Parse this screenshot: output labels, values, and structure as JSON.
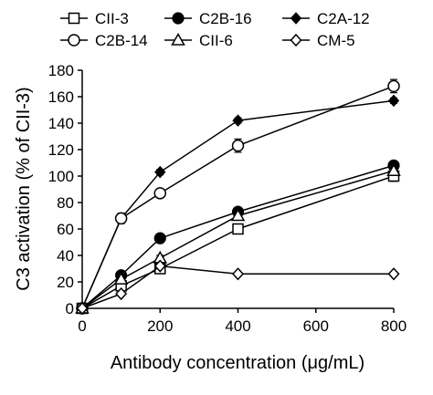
{
  "chart_data": {
    "type": "line",
    "title": "",
    "xlabel": "Antibody concentration (μg/mL)",
    "ylabel": "C3 activation (% of CII-3)",
    "xlim": [
      0,
      800
    ],
    "ylim": [
      0,
      180
    ],
    "xticks": [
      0,
      200,
      400,
      600,
      800
    ],
    "yticks": [
      0,
      20,
      40,
      60,
      80,
      100,
      120,
      140,
      160,
      180
    ],
    "grid": false,
    "legend_position": "top",
    "x": [
      0,
      100,
      200,
      400,
      800
    ],
    "series": [
      {
        "name": "CII-3",
        "marker": "open-square",
        "values": [
          0,
          17,
          30,
          60,
          100
        ],
        "errors": [
          0,
          2,
          2,
          2,
          4
        ]
      },
      {
        "name": "C2B-16",
        "marker": "filled-circle",
        "values": [
          0,
          25,
          53,
          73,
          108
        ],
        "errors": [
          0,
          2,
          2,
          2,
          2
        ]
      },
      {
        "name": "C2A-12",
        "marker": "filled-diamond",
        "values": [
          0,
          68,
          103,
          142,
          157
        ],
        "errors": [
          0,
          3,
          2,
          2,
          2
        ]
      },
      {
        "name": "C2B-14",
        "marker": "open-circle",
        "values": [
          0,
          68,
          87,
          123,
          168
        ],
        "errors": [
          0,
          4,
          2,
          5,
          5
        ]
      },
      {
        "name": "CII-6",
        "marker": "open-triangle",
        "values": [
          0,
          22,
          38,
          70,
          104
        ],
        "errors": [
          0,
          2,
          2,
          2,
          2
        ]
      },
      {
        "name": "CM-5",
        "marker": "open-diamond",
        "values": [
          0,
          11,
          32,
          26,
          26
        ],
        "errors": [
          0,
          1,
          1,
          1,
          1
        ]
      }
    ]
  }
}
